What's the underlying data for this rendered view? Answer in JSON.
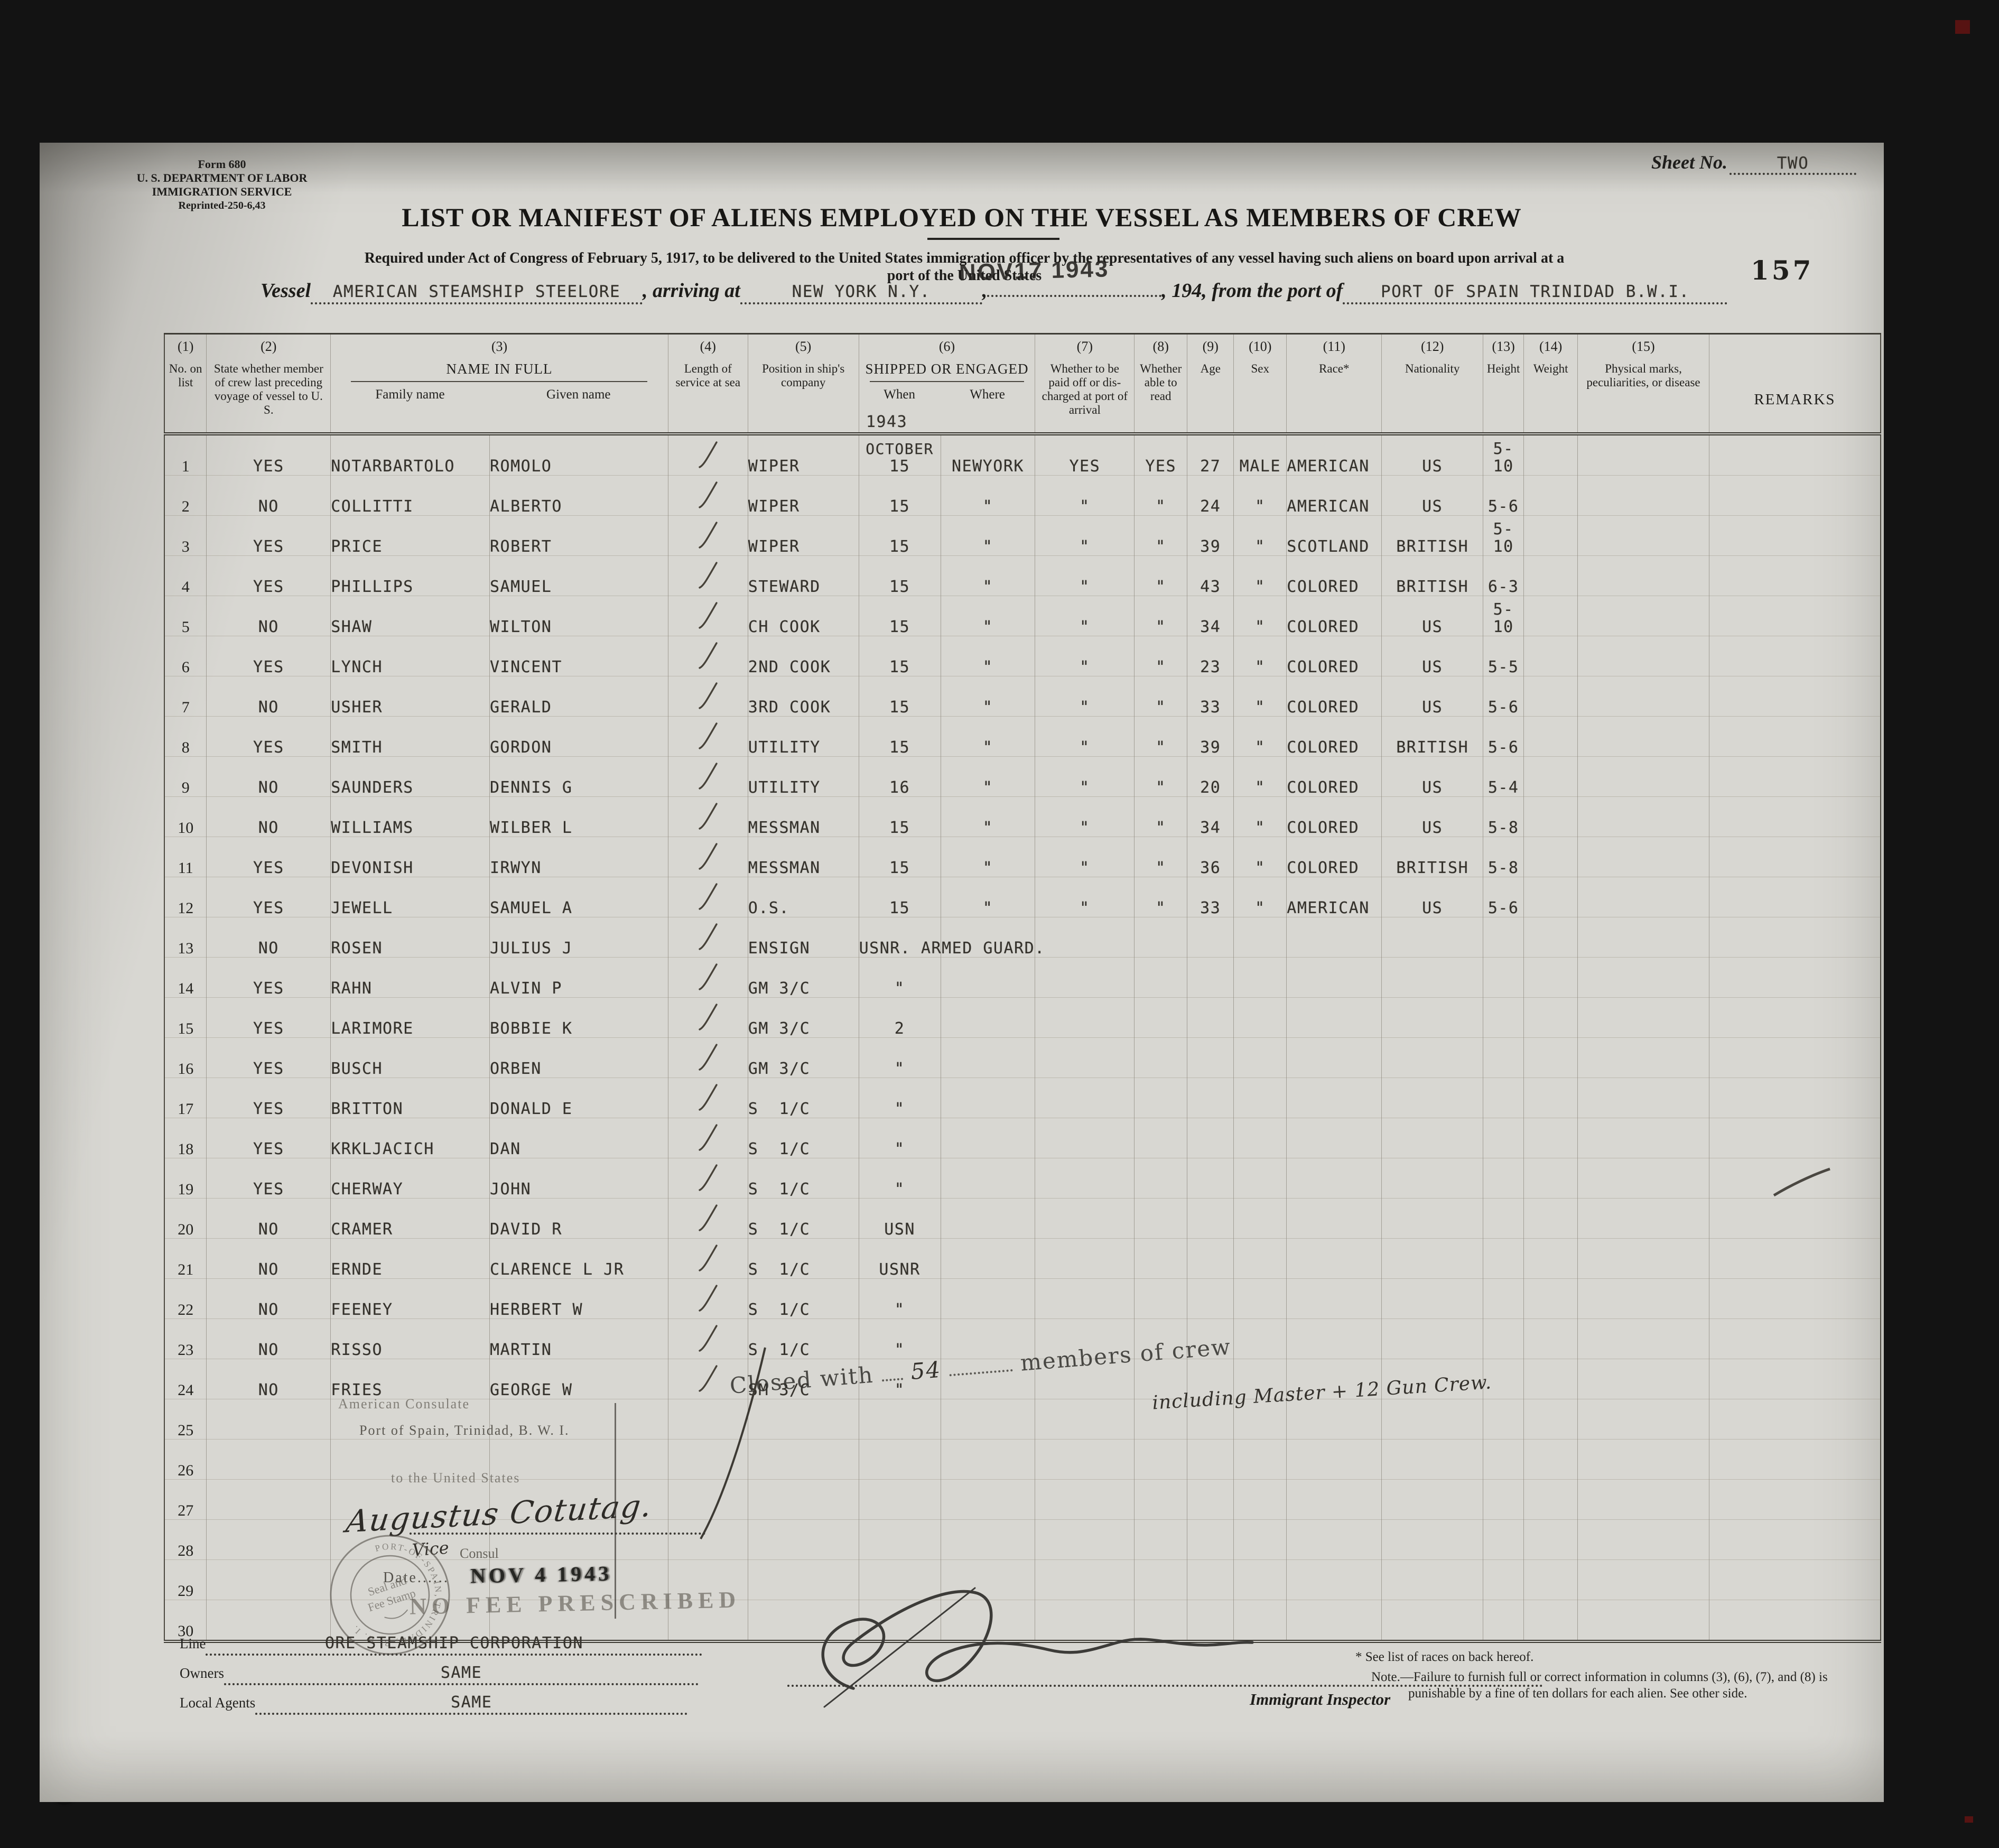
{
  "header": {
    "form": [
      "Form 680",
      "U. S. DEPARTMENT OF LABOR",
      "IMMIGRATION SERVICE",
      "Reprinted-250-6,43"
    ],
    "sheet_label": "Sheet No.",
    "sheet_value": "TWO",
    "title": "LIST OR MANIFEST OF ALIENS EMPLOYED ON THE VESSEL AS MEMBERS OF CREW",
    "required1": "Required under Act of Congress of February 5, 1917, to be delivered to the United States immigration officer by the representatives of any vessel having such aliens on board upon arrival at a",
    "required2": "port of the United States",
    "page_number": "157",
    "vessel_label": "Vessel",
    "vessel_value": "AMERICAN STEAMSHIP STEELORE",
    "arriving_label": ", arriving at",
    "arriving_value": "NEW YORK N.Y.",
    "comma": ",",
    "year_label": ", 194",
    "port_label": ", from the port of",
    "port_value": "PORT OF SPAIN TRINIDAD B.W.I.",
    "arrival_date_stamp": "NOV17 1943"
  },
  "table": {
    "headers": {
      "c1": {
        "num": "(1)",
        "label": "No. on list"
      },
      "c2": {
        "num": "(2)",
        "label": "State whether member of crew last preceding voyage of vessel to U. S."
      },
      "c3": {
        "num": "(3)",
        "label": "NAME IN FULL",
        "sub1": "Family name",
        "sub2": "Given name"
      },
      "c4": {
        "num": "(4)",
        "label": "Length of service at sea"
      },
      "c5": {
        "num": "(5)",
        "label": "Position in ship's company"
      },
      "c6": {
        "num": "(6)",
        "label": "SHIPPED OR  ENGAGED",
        "sub1": "When",
        "sub2": "Where",
        "year": "1943"
      },
      "c7": {
        "num": "(7)",
        "label": "Whether to be paid off or dis- charged at port of arrival"
      },
      "c8": {
        "num": "(8)",
        "label": "Whether able to read"
      },
      "c9": {
        "num": "(9)",
        "label": "Age"
      },
      "c10": {
        "num": "(10)",
        "label": "Sex"
      },
      "c11": {
        "num": "(11)",
        "label": "Race*"
      },
      "c12": {
        "num": "(12)",
        "label": "Nationality"
      },
      "c13": {
        "num": "(13)",
        "label": "Height"
      },
      "c14": {
        "num": "(14)",
        "label": "Weight"
      },
      "c15": {
        "num": "(15)",
        "label": "Physical marks, peculiarities, or disease"
      },
      "c16": {
        "label": "REMARKS"
      }
    },
    "rows": [
      {
        "no": "1",
        "member": "YES",
        "family": "NOTARBARTOLO",
        "given": "ROMOLO",
        "mark": true,
        "position": "WIPER",
        "when": "OCTOBER|15",
        "where": "NEWYORK",
        "paid": "YES",
        "read": "YES",
        "age": "27",
        "sex": "MALE",
        "race": "AMERICAN",
        "nationality": "US",
        "height": "5-10"
      },
      {
        "no": "2",
        "member": "NO",
        "family": "COLLITTI",
        "given": "ALBERTO",
        "mark": true,
        "position": "WIPER",
        "when": "15",
        "where": "\"",
        "paid": "\"",
        "read": "\"",
        "age": "24",
        "sex": "\"",
        "race": "AMERICAN",
        "nationality": "US",
        "height": "5-6"
      },
      {
        "no": "3",
        "member": "YES",
        "family": "PRICE",
        "given": "ROBERT",
        "mark": true,
        "position": "WIPER",
        "when": "15",
        "where": "\"",
        "paid": "\"",
        "read": "\"",
        "age": "39",
        "sex": "\"",
        "race": "SCOTLAND",
        "nationality": "BRITISH",
        "height": "5-10"
      },
      {
        "no": "4",
        "member": "YES",
        "family": "PHILLIPS",
        "given": "SAMUEL",
        "mark": true,
        "position": "STEWARD",
        "when": "15",
        "where": "\"",
        "paid": "\"",
        "read": "\"",
        "age": "43",
        "sex": "\"",
        "race": "COLORED",
        "nationality": "BRITISH",
        "height": "6-3"
      },
      {
        "no": "5",
        "member": "NO",
        "family": "SHAW",
        "given": "WILTON",
        "mark": true,
        "position": "CH COOK",
        "when": "15",
        "where": "\"",
        "paid": "\"",
        "read": "\"",
        "age": "34",
        "sex": "\"",
        "race": "COLORED",
        "nationality": "US",
        "height": "5-10"
      },
      {
        "no": "6",
        "member": "YES",
        "family": "LYNCH",
        "given": "VINCENT",
        "mark": true,
        "position": "2ND COOK",
        "when": "15",
        "where": "\"",
        "paid": "\"",
        "read": "\"",
        "age": "23",
        "sex": "\"",
        "race": "COLORED",
        "nationality": "US",
        "height": "5-5"
      },
      {
        "no": "7",
        "member": "NO",
        "family": "USHER",
        "given": "GERALD",
        "mark": true,
        "position": "3RD COOK",
        "when": "15",
        "where": "\"",
        "paid": "\"",
        "read": "\"",
        "age": "33",
        "sex": "\"",
        "race": "COLORED",
        "nationality": "US",
        "height": "5-6"
      },
      {
        "no": "8",
        "member": "YES",
        "family": "SMITH",
        "given": "GORDON",
        "mark": true,
        "position": "UTILITY",
        "when": "15",
        "where": "\"",
        "paid": "\"",
        "read": "\"",
        "age": "39",
        "sex": "\"",
        "race": "COLORED",
        "nationality": "BRITISH",
        "height": "5-6"
      },
      {
        "no": "9",
        "member": "NO",
        "family": "SAUNDERS",
        "given": "DENNIS G",
        "mark": true,
        "position": "UTILITY",
        "when": "16",
        "where": "\"",
        "paid": "\"",
        "read": "\"",
        "age": "20",
        "sex": "\"",
        "race": "COLORED",
        "nationality": "US",
        "height": "5-4"
      },
      {
        "no": "10",
        "member": "NO",
        "family": "WILLIAMS",
        "given": "WILBER L",
        "mark": true,
        "position": "MESSMAN",
        "when": "15",
        "where": "\"",
        "paid": "\"",
        "read": "\"",
        "age": "34",
        "sex": "\"",
        "race": "COLORED",
        "nationality": "US",
        "height": "5-8"
      },
      {
        "no": "11",
        "member": "YES",
        "family": "DEVONISH",
        "given": "IRWYN",
        "mark": true,
        "position": "MESSMAN",
        "when": "15",
        "where": "\"",
        "paid": "\"",
        "read": "\"",
        "age": "36",
        "sex": "\"",
        "race": "COLORED",
        "nationality": "BRITISH",
        "height": "5-8"
      },
      {
        "no": "12",
        "member": "YES",
        "family": "JEWELL",
        "given": "SAMUEL A",
        "mark": true,
        "position": "O.S.",
        "when": "15",
        "where": "\"",
        "paid": "\"",
        "read": "\"",
        "age": "33",
        "sex": "\"",
        "race": "AMERICAN",
        "nationality": "US",
        "height": "5-6"
      },
      {
        "no": "13",
        "member": "NO",
        "family": "ROSEN",
        "given": "JULIUS J",
        "mark": true,
        "position": "ENSIGN",
        "when": "USNR. ARMED GUARD.",
        "span_when": true
      },
      {
        "no": "14",
        "member": "YES",
        "family": "RAHN",
        "given": "ALVIN P",
        "mark": true,
        "position": "GM 3/C",
        "when": "\""
      },
      {
        "no": "15",
        "member": "YES",
        "family": "LARIMORE",
        "given": "BOBBIE K",
        "mark": true,
        "position": "GM 3/C",
        "when": "2"
      },
      {
        "no": "16",
        "member": "YES",
        "family": "BUSCH",
        "given": "ORBEN",
        "mark": true,
        "position": "GM 3/C",
        "when": "\""
      },
      {
        "no": "17",
        "member": "YES",
        "family": "BRITTON",
        "given": "DONALD E",
        "mark": true,
        "position": "S  1/C",
        "when": "\""
      },
      {
        "no": "18",
        "member": "YES",
        "family": "KRKLJACICH",
        "given": "DAN",
        "mark": true,
        "position": "S  1/C",
        "when": "\""
      },
      {
        "no": "19",
        "member": "YES",
        "family": "CHERWAY",
        "given": "JOHN",
        "mark": true,
        "position": "S  1/C",
        "when": "\""
      },
      {
        "no": "20",
        "member": "NO",
        "family": "CRAMER",
        "given": "DAVID R",
        "mark": true,
        "position": "S  1/C",
        "when": "USN"
      },
      {
        "no": "21",
        "member": "NO",
        "family": "ERNDE",
        "given": "CLARENCE L JR",
        "mark": true,
        "position": "S  1/C",
        "when": "USNR"
      },
      {
        "no": "22",
        "member": "NO",
        "family": "FEENEY",
        "given": "HERBERT W",
        "mark": true,
        "position": "S  1/C",
        "when": "\""
      },
      {
        "no": "23",
        "member": "NO",
        "family": "RISSO",
        "given": "MARTIN",
        "mark": true,
        "position": "S  1/C",
        "when": "\""
      },
      {
        "no": "24",
        "member": "NO",
        "family": "FRIES",
        "given": "GEORGE W",
        "mark": true,
        "position": "SM 3/C",
        "when": "\""
      },
      {
        "no": "25"
      },
      {
        "no": "26"
      },
      {
        "no": "27"
      },
      {
        "no": "28"
      },
      {
        "no": "29"
      },
      {
        "no": "30"
      }
    ]
  },
  "stamps": {
    "closed": {
      "prefix": "Closed with",
      "count": "54",
      "suffix": "members of crew",
      "hand": "including Master + 12 Gun Crew."
    },
    "consulate": {
      "line1": "American Consulate",
      "line2": "Port of Spain, Trinidad, B. W. I.",
      "line3": "to the United States",
      "signature": "Augustus Cotutag.",
      "vice": "Vice",
      "consul": "Consul",
      "date_label": "Date......",
      "date_value": "NOV 4 1943",
      "no_fee": "NO FEE PRESCRIBED",
      "seal_center1": "Seal and",
      "seal_center2": "Fee Stamp",
      "seal_ring": "PORT-OF-SPAIN, TRINIDAD, B. W. I."
    }
  },
  "footer": {
    "line_label": "Line",
    "line_value": "ORE STEAMSHIP CORPORATION",
    "owners_label": "Owners",
    "owners_value": "SAME",
    "agents_label": "Local Agents",
    "agents_value": "SAME",
    "inspector_label": "Immigrant Inspector",
    "footnote_star": "* See list of races on back hereof.",
    "note_line1": "Note.—Failure to furnish full or correct information in columns (3), (6), (7), and (8) is",
    "note_line2": "punishable by a fine of ten dollars for each alien.   See other side."
  }
}
